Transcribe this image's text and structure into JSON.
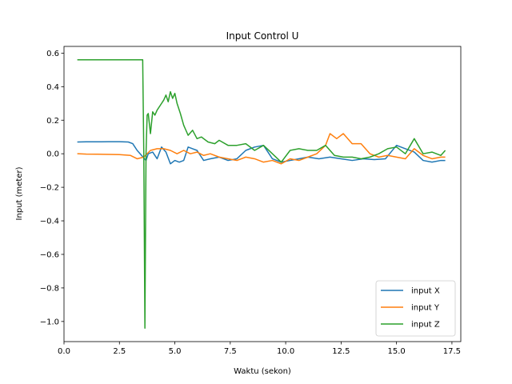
{
  "chart_data": {
    "type": "line",
    "title": "Input Control U",
    "xlabel": "Waktu (sekon)",
    "ylabel": "Input (meter)",
    "xlim": [
      0.0,
      17.9
    ],
    "ylim": [
      -1.12,
      0.64
    ],
    "xticks": [
      0.0,
      2.5,
      5.0,
      7.5,
      10.0,
      12.5,
      15.0,
      17.5
    ],
    "xtick_labels": [
      "0.0",
      "2.5",
      "5.0",
      "7.5",
      "10.0",
      "12.5",
      "15.0",
      "17.5"
    ],
    "yticks": [
      0.6,
      0.4,
      0.2,
      0.0,
      -0.2,
      -0.4,
      -0.6,
      -0.8,
      -1.0
    ],
    "ytick_labels": [
      "0.6",
      "0.4",
      "0.2",
      "0.0",
      "−0.2",
      "−0.4",
      "−0.6",
      "−0.8",
      "−1.0"
    ],
    "legend_position": "lower-right",
    "grid": false,
    "series": [
      {
        "name": "input X",
        "color": "#1f77b4",
        "x": [
          0.6,
          1.0,
          1.5,
          2.0,
          2.5,
          2.9,
          3.1,
          3.3,
          3.5,
          3.7,
          3.8,
          4.0,
          4.2,
          4.4,
          4.6,
          4.8,
          5.0,
          5.2,
          5.4,
          5.6,
          5.8,
          6.0,
          6.3,
          6.6,
          7.0,
          7.4,
          7.8,
          8.2,
          8.6,
          9.0,
          9.4,
          9.8,
          10.2,
          10.6,
          11.0,
          11.5,
          12.0,
          12.5,
          13.0,
          13.5,
          14.0,
          14.5,
          15.0,
          15.4,
          15.8,
          16.2,
          16.6,
          17.0,
          17.2
        ],
        "y": [
          0.07,
          0.071,
          0.071,
          0.072,
          0.072,
          0.07,
          0.06,
          0.02,
          -0.01,
          -0.04,
          0.0,
          0.01,
          -0.03,
          0.04,
          0.01,
          -0.06,
          -0.04,
          -0.05,
          -0.04,
          0.04,
          0.03,
          0.02,
          -0.04,
          -0.03,
          -0.02,
          -0.04,
          -0.03,
          0.02,
          0.04,
          0.05,
          -0.03,
          -0.05,
          -0.04,
          -0.03,
          -0.02,
          -0.03,
          -0.02,
          -0.03,
          -0.04,
          -0.03,
          -0.035,
          -0.03,
          0.05,
          0.03,
          0.01,
          -0.04,
          -0.05,
          -0.04,
          -0.04
        ]
      },
      {
        "name": "input Y",
        "color": "#ff7f0e",
        "x": [
          0.6,
          1.0,
          1.5,
          2.0,
          2.5,
          3.0,
          3.3,
          3.6,
          3.9,
          4.2,
          4.5,
          4.8,
          5.1,
          5.4,
          5.7,
          6.0,
          6.3,
          6.6,
          7.0,
          7.4,
          7.8,
          8.2,
          8.6,
          9.0,
          9.4,
          9.8,
          10.2,
          10.6,
          11.0,
          11.4,
          11.8,
          12.0,
          12.3,
          12.6,
          13.0,
          13.4,
          13.8,
          14.2,
          14.6,
          15.0,
          15.4,
          15.8,
          16.2,
          16.6,
          17.0,
          17.2
        ],
        "y": [
          0.0,
          -0.002,
          -0.003,
          -0.004,
          -0.005,
          -0.01,
          -0.03,
          -0.02,
          0.02,
          0.03,
          0.03,
          0.02,
          0.0,
          0.02,
          0.0,
          0.01,
          -0.01,
          0.0,
          -0.02,
          -0.03,
          -0.04,
          -0.02,
          -0.03,
          -0.05,
          -0.04,
          -0.06,
          -0.03,
          -0.04,
          -0.02,
          0.0,
          0.05,
          0.12,
          0.09,
          0.12,
          0.06,
          0.06,
          0.0,
          -0.02,
          -0.01,
          -0.02,
          -0.03,
          0.03,
          -0.01,
          -0.03,
          -0.02,
          -0.02
        ]
      },
      {
        "name": "input Z",
        "color": "#2ca02c",
        "x": [
          0.6,
          1.5,
          2.5,
          3.2,
          3.55,
          3.6,
          3.65,
          3.7,
          3.75,
          3.8,
          3.9,
          4.0,
          4.1,
          4.2,
          4.35,
          4.5,
          4.6,
          4.7,
          4.8,
          4.9,
          5.0,
          5.1,
          5.25,
          5.4,
          5.6,
          5.8,
          6.0,
          6.2,
          6.5,
          6.8,
          7.0,
          7.4,
          7.8,
          8.2,
          8.6,
          9.0,
          9.4,
          9.8,
          10.2,
          10.6,
          11.0,
          11.4,
          11.8,
          12.2,
          12.6,
          13.0,
          13.4,
          13.8,
          14.2,
          14.6,
          15.0,
          15.4,
          15.8,
          16.2,
          16.6,
          17.0,
          17.2
        ],
        "y": [
          0.56,
          0.56,
          0.56,
          0.56,
          0.56,
          0.0,
          -1.04,
          0.0,
          0.23,
          0.24,
          0.12,
          0.25,
          0.23,
          0.26,
          0.29,
          0.32,
          0.35,
          0.31,
          0.37,
          0.33,
          0.36,
          0.3,
          0.24,
          0.17,
          0.11,
          0.14,
          0.09,
          0.1,
          0.07,
          0.06,
          0.08,
          0.05,
          0.05,
          0.06,
          0.02,
          0.05,
          0.0,
          -0.05,
          0.02,
          0.03,
          0.02,
          0.02,
          0.05,
          -0.01,
          -0.02,
          -0.02,
          -0.03,
          -0.02,
          0.0,
          0.03,
          0.04,
          0.0,
          0.09,
          0.0,
          0.01,
          -0.01,
          0.02
        ]
      }
    ]
  }
}
